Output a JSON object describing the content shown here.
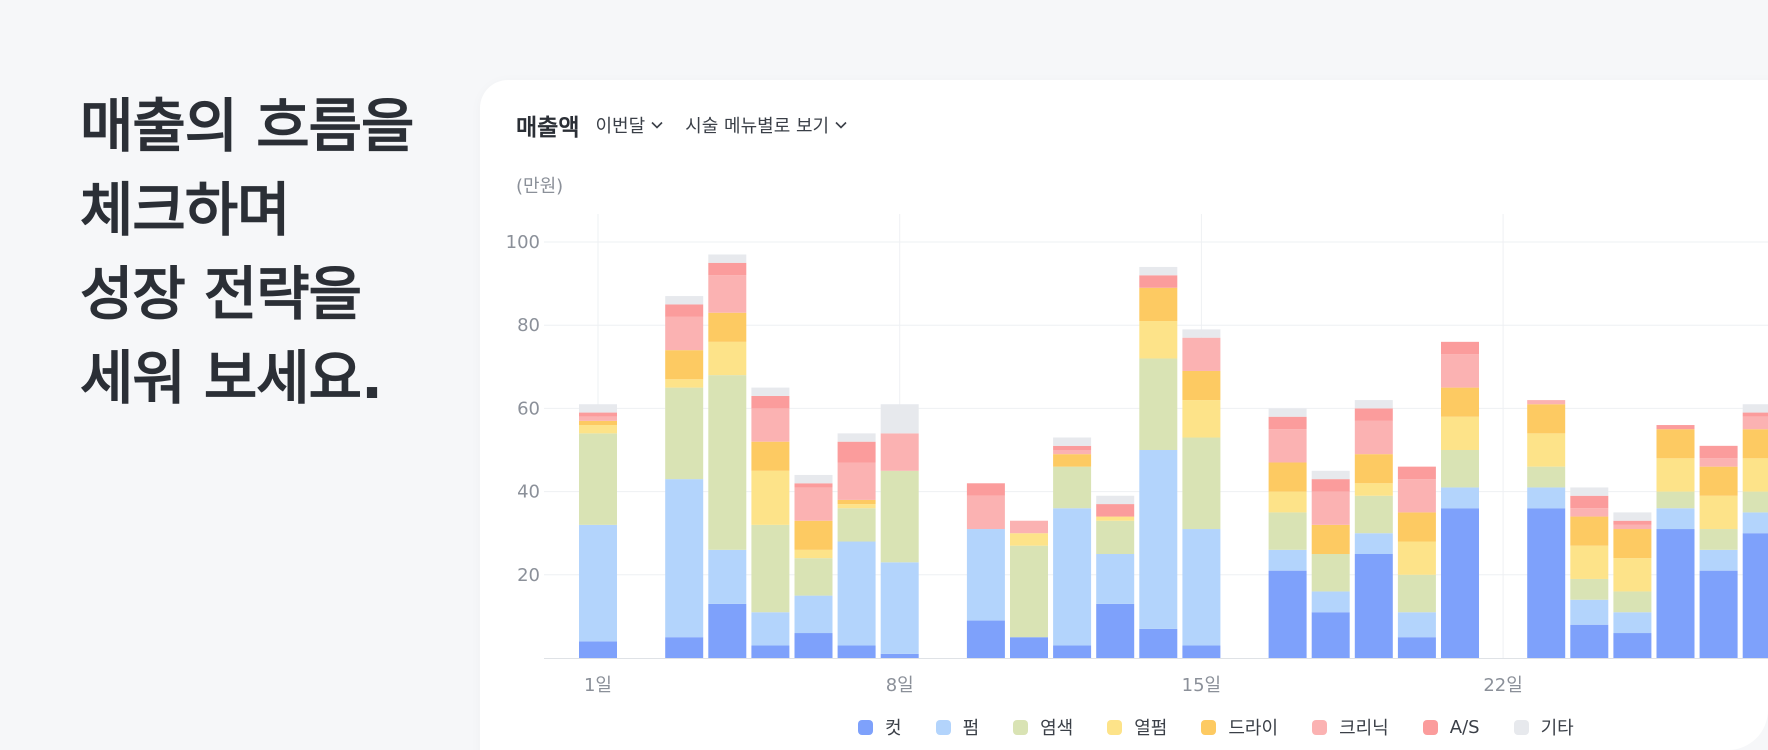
{
  "headline": [
    "매출의 흐름을",
    "체크하며",
    "성장 전략을",
    "세워 보세요."
  ],
  "toolbar": {
    "title": "매출액",
    "period_label": "이번달",
    "view_label": "시술 메뉴별로 보기"
  },
  "unit_label": "(만원)",
  "colors": {
    "컷": "#7ea1fb",
    "펌": "#b3d4fc",
    "염색": "#d9e3b4",
    "열펌": "#fde389",
    "드라이": "#fdca62",
    "크리닉": "#fbb2b2",
    "A/S": "#fb9c9c",
    "기타": "#e7e9ed"
  },
  "chart_data": {
    "type": "bar",
    "stacked": true,
    "ylim": [
      0,
      100
    ],
    "yticks": [
      20,
      40,
      60,
      80,
      100
    ],
    "x_ticks": [
      {
        "day": 1,
        "label": "1일"
      },
      {
        "day": 8,
        "label": "8일"
      },
      {
        "day": 15,
        "label": "15일"
      },
      {
        "day": 22,
        "label": "22일"
      }
    ],
    "grid": true,
    "legend_position": "bottom",
    "categories": [
      1,
      2,
      3,
      4,
      5,
      6,
      7,
      8,
      9,
      10,
      11,
      12,
      13,
      14,
      15,
      16,
      17,
      18,
      19,
      20,
      21,
      22,
      23,
      24,
      25,
      26,
      27,
      28
    ],
    "series": [
      {
        "name": "컷",
        "values": [
          4,
          0,
          5,
          13,
          3,
          6,
          3,
          1,
          0,
          9,
          5,
          3,
          13,
          7,
          3,
          0,
          21,
          11,
          25,
          5,
          36,
          0,
          36,
          8,
          6,
          31,
          21,
          30
        ]
      },
      {
        "name": "펌",
        "values": [
          28,
          0,
          38,
          13,
          8,
          9,
          25,
          22,
          0,
          22,
          0,
          33,
          12,
          43,
          28,
          0,
          5,
          5,
          5,
          6,
          5,
          0,
          5,
          6,
          5,
          5,
          5,
          5
        ]
      },
      {
        "name": "염색",
        "values": [
          22,
          0,
          22,
          42,
          21,
          9,
          8,
          22,
          0,
          0,
          22,
          10,
          8,
          22,
          22,
          0,
          9,
          9,
          9,
          9,
          9,
          0,
          5,
          5,
          5,
          4,
          5,
          5
        ]
      },
      {
        "name": "열펌",
        "values": [
          2,
          0,
          2,
          8,
          13,
          2,
          1,
          0,
          0,
          0,
          3,
          0,
          1,
          9,
          9,
          0,
          5,
          0,
          3,
          8,
          8,
          0,
          8,
          8,
          8,
          8,
          8,
          8
        ]
      },
      {
        "name": "드라이",
        "values": [
          1,
          0,
          7,
          7,
          7,
          7,
          1,
          0,
          0,
          0,
          0,
          3,
          0,
          8,
          7,
          0,
          7,
          7,
          7,
          7,
          7,
          0,
          7,
          7,
          7,
          7,
          7,
          7
        ]
      },
      {
        "name": "크리닉",
        "values": [
          1,
          0,
          8,
          9,
          8,
          8,
          9,
          9,
          0,
          8,
          3,
          1,
          0,
          0,
          8,
          0,
          8,
          8,
          8,
          8,
          8,
          0,
          1,
          2,
          1,
          0,
          2,
          3
        ]
      },
      {
        "name": "A/S",
        "values": [
          1,
          0,
          3,
          3,
          3,
          1,
          5,
          0,
          0,
          3,
          0,
          1,
          3,
          3,
          0,
          0,
          3,
          3,
          3,
          3,
          3,
          0,
          0,
          3,
          1,
          1,
          3,
          1
        ]
      },
      {
        "name": "기타",
        "values": [
          2,
          0,
          2,
          2,
          2,
          2,
          2,
          7,
          0,
          0,
          0,
          2,
          2,
          2,
          2,
          0,
          2,
          2,
          2,
          0,
          0,
          0,
          0,
          2,
          2,
          0,
          0,
          2
        ]
      }
    ]
  }
}
